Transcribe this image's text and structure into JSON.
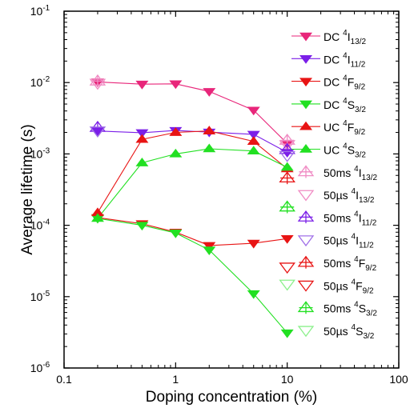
{
  "chart_data": {
    "type": "scatter",
    "title": "",
    "xlabel": "Doping concentration (%)",
    "ylabel": "Average lifetime (s)",
    "xscale": "log",
    "yscale": "log",
    "xlim": [
      0.1,
      100
    ],
    "ylim": [
      1e-06,
      0.1
    ],
    "x_ticks": [
      {
        "value": 0.1,
        "label": "0.1"
      },
      {
        "value": 1,
        "label": "1"
      },
      {
        "value": 10,
        "label": "10"
      },
      {
        "value": 100,
        "label": "100"
      }
    ],
    "y_ticks": [
      {
        "value": 1e-06,
        "base": "10",
        "exp": "-6"
      },
      {
        "value": 1e-05,
        "base": "10",
        "exp": "-5"
      },
      {
        "value": 0.0001,
        "base": "10",
        "exp": "-4"
      },
      {
        "value": 0.001,
        "base": "10",
        "exp": "-3"
      },
      {
        "value": 0.01,
        "base": "10",
        "exp": "-2"
      },
      {
        "value": 0.1,
        "base": "10",
        "exp": "-1"
      }
    ],
    "legend_position": "right",
    "series": [
      {
        "name": "DC 4I13/2",
        "label_prefix": "DC ",
        "label_sup": "4",
        "label_main": "I",
        "label_sub": "13/2",
        "marker": "triangle-down",
        "filled": true,
        "color": "#e8267a",
        "line": true,
        "x": [
          0.2,
          0.5,
          1,
          2,
          5,
          10
        ],
        "y": [
          0.0102,
          0.0095,
          0.0096,
          0.0075,
          0.0041,
          0.0014
        ]
      },
      {
        "name": "DC 4I11/2",
        "label_prefix": "DC ",
        "label_sup": "4",
        "label_main": "I",
        "label_sub": "11/2",
        "marker": "triangle-down",
        "filled": true,
        "color": "#7b1fe8",
        "line": true,
        "x": [
          0.2,
          0.5,
          1,
          2,
          5,
          10
        ],
        "y": [
          0.0021,
          0.00198,
          0.00213,
          0.00202,
          0.00188,
          0.00105
        ]
      },
      {
        "name": "DC 4F9/2",
        "label_prefix": "DC ",
        "label_sup": "4",
        "label_main": "F",
        "label_sub": "9/2",
        "marker": "triangle-down",
        "filled": true,
        "color": "#e81414",
        "line": true,
        "x": [
          0.2,
          0.5,
          1,
          2,
          5,
          10
        ],
        "y": [
          0.000128,
          0.000105,
          8e-05,
          5.2e-05,
          5.6e-05,
          6.5e-05
        ]
      },
      {
        "name": "DC 4S3/2",
        "label_prefix": "DC ",
        "label_sup": "4",
        "label_main": "S",
        "label_sub": "3/2",
        "marker": "triangle-down",
        "filled": true,
        "color": "#22e022",
        "line": true,
        "x": [
          0.2,
          0.5,
          1,
          2,
          5,
          10
        ],
        "y": [
          0.000125,
          0.0001,
          7.8e-05,
          4.5e-05,
          1.1e-05,
          3.1e-06
        ]
      },
      {
        "name": "UC 4F9/2",
        "label_prefix": "UC ",
        "label_sup": "4",
        "label_main": "F",
        "label_sub": "9/2",
        "marker": "triangle-up",
        "filled": true,
        "color": "#e81414",
        "line": true,
        "x": [
          0.2,
          0.5,
          1,
          2,
          5,
          10
        ],
        "y": [
          0.00015,
          0.0016,
          0.002,
          0.0021,
          0.0015,
          0.00062
        ]
      },
      {
        "name": "UC 4S3/2",
        "label_prefix": "UC ",
        "label_sup": "4",
        "label_main": "S",
        "label_sub": "3/2",
        "marker": "triangle-up",
        "filled": true,
        "color": "#22e022",
        "line": true,
        "x": [
          0.2,
          0.5,
          1,
          2,
          5,
          10
        ],
        "y": [
          0.000125,
          0.00075,
          0.001,
          0.00118,
          0.0011,
          0.00065
        ]
      },
      {
        "name": "50ms 4I13/2",
        "label_prefix": "50ms ",
        "label_sup": "4",
        "label_main": "I",
        "label_sub": "13/2",
        "marker": "triangle-up-cross",
        "filled": false,
        "color": "#f08cc4",
        "line": false,
        "x": [
          0.2,
          10
        ],
        "y": [
          0.0105,
          0.00155
        ]
      },
      {
        "name": "50µs 4I13/2",
        "label_prefix": "50µs ",
        "label_sup": "4",
        "label_main": "I",
        "label_sub": "13/2",
        "marker": "triangle-down-open",
        "filled": false,
        "color": "#f08cc4",
        "line": false,
        "x": [
          0.2,
          10
        ],
        "y": [
          0.0098,
          0.00135
        ]
      },
      {
        "name": "50ms 4I11/2",
        "label_prefix": "50ms ",
        "label_sup": "4",
        "label_main": "I",
        "label_sub": "11/2",
        "marker": "triangle-up-cross",
        "filled": false,
        "color": "#7b1fe8",
        "line": false,
        "x": [
          0.2,
          10
        ],
        "y": [
          0.00235,
          0.00115
        ]
      },
      {
        "name": "50µs 4I11/2",
        "label_prefix": "50µs ",
        "label_sup": "4",
        "label_main": "I",
        "label_sub": "11/2",
        "marker": "triangle-down-open",
        "filled": false,
        "color": "#a070e8",
        "line": false,
        "x": [
          0.2,
          10
        ],
        "y": [
          0.0021,
          0.00095
        ]
      },
      {
        "name": "50ms 4F9/2",
        "label_prefix": "50ms ",
        "label_sup": "4",
        "label_main": "F",
        "label_sub": "9/2",
        "marker": "triangle-up-cross",
        "filled": false,
        "color": "#e81414",
        "line": false,
        "x": [
          10
        ],
        "y": [
          0.00046
        ]
      },
      {
        "name": "50µs 4F9/2",
        "label_prefix": "50µs ",
        "label_sup": "4",
        "label_main": "F",
        "label_sub": "9/2",
        "marker": "triangle-down-open",
        "filled": false,
        "color": "#e81414",
        "line": false,
        "x": [
          10
        ],
        "y": [
          2.6e-05
        ]
      },
      {
        "name": "50ms 4S3/2",
        "label_prefix": "50ms ",
        "label_sup": "4",
        "label_main": "S",
        "label_sub": "3/2",
        "marker": "triangle-up-cross",
        "filled": false,
        "color": "#22e022",
        "line": false,
        "x": [
          10
        ],
        "y": [
          0.00018
        ]
      },
      {
        "name": "50µs 4S3/2",
        "label_prefix": "50µs ",
        "label_sup": "4",
        "label_main": "S",
        "label_sub": "3/2",
        "marker": "triangle-down-open",
        "filled": false,
        "color": "#8cf08c",
        "line": false,
        "x": [
          10
        ],
        "y": [
          1.5e-05
        ]
      }
    ]
  }
}
